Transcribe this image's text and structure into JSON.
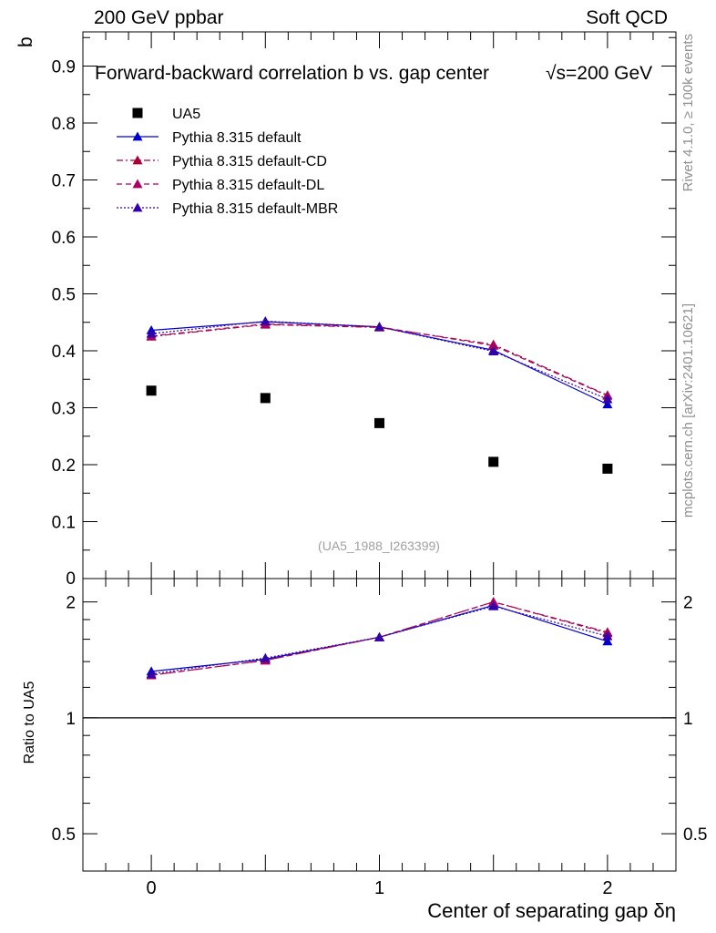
{
  "header": {
    "left": "200 GeV ppbar",
    "right": "Soft QCD"
  },
  "side_labels": {
    "rivet": "Rivet 4.1.0, ≥ 100k events",
    "mcplots": "mcplots.cern.ch [arXiv:2401.10621]"
  },
  "colors": {
    "data": "#000000",
    "default": "#0000cc",
    "cd": "#aa0033",
    "dl": "#aa0066",
    "mbr": "#3300aa"
  },
  "chart_data": [
    {
      "type": "scatter",
      "title": "Forward-backward correlation b  vs. gap center",
      "title_suffix": "√s=200 GeV",
      "watermark": "(UA5_1988_I263399)",
      "xlabel": "Center of separating gap δη",
      "ylabel": "b",
      "xlim": [
        -0.3,
        2.3
      ],
      "ylim": [
        0,
        0.96
      ],
      "yticks": [
        0.1,
        0.2,
        0.3,
        0.4,
        0.5,
        0.6,
        0.7,
        0.8,
        0.9
      ],
      "ytick_labels": [
        "0.1",
        "0.2",
        "0.3",
        "0.4",
        "0.5",
        "0.6",
        "0.7",
        "0.8",
        "0.9"
      ],
      "y_zero_label": "0",
      "x": [
        0,
        0.5,
        1,
        1.5,
        2
      ],
      "series": [
        {
          "name": "UA5",
          "marker": "square",
          "line": "none",
          "color": "#000000",
          "values": [
            0.33,
            0.317,
            0.273,
            0.205,
            0.193
          ]
        },
        {
          "name": "Pythia 8.315 default",
          "marker": "triangle",
          "line": "solid",
          "color": "#0000cc",
          "values": [
            0.436,
            0.451,
            0.442,
            0.401,
            0.306
          ]
        },
        {
          "name": "Pythia 8.315 default-CD",
          "marker": "triangle",
          "line": "dashdot",
          "color": "#aa0033",
          "values": [
            0.425,
            0.446,
            0.441,
            0.411,
            0.322
          ]
        },
        {
          "name": "Pythia 8.315 default-DL",
          "marker": "triangle",
          "line": "dashed",
          "color": "#aa0066",
          "values": [
            0.426,
            0.447,
            0.442,
            0.409,
            0.321
          ]
        },
        {
          "name": "Pythia 8.315 default-MBR",
          "marker": "triangle",
          "line": "dotted",
          "color": "#3300aa",
          "values": [
            0.43,
            0.452,
            0.442,
            0.399,
            0.315
          ]
        }
      ]
    },
    {
      "type": "line",
      "ylabel": "Ratio to UA5",
      "xlabel": "Center of separating gap δη",
      "xlim": [
        -0.3,
        2.3
      ],
      "ylim": [
        0.4,
        2.3
      ],
      "yscale": "log",
      "yticks": [
        0.5,
        1,
        2
      ],
      "ytick_labels": [
        "0.5",
        "1",
        "2"
      ],
      "xticks": [
        0,
        1,
        2
      ],
      "xtick_labels": [
        "0",
        "1",
        "2"
      ],
      "reference": 1,
      "x": [
        0,
        0.5,
        1,
        1.5,
        2
      ],
      "series": [
        {
          "name": "Pythia 8.315 default",
          "line": "solid",
          "color": "#0000cc",
          "values": [
            1.32,
            1.42,
            1.62,
            1.96,
            1.58
          ]
        },
        {
          "name": "Pythia 8.315 default-CD",
          "line": "dashdot",
          "color": "#aa0033",
          "values": [
            1.29,
            1.41,
            1.62,
            2.0,
            1.67
          ]
        },
        {
          "name": "Pythia 8.315 default-DL",
          "line": "dashed",
          "color": "#aa0066",
          "values": [
            1.29,
            1.41,
            1.62,
            2.0,
            1.66
          ]
        },
        {
          "name": "Pythia 8.315 default-MBR",
          "line": "dotted",
          "color": "#3300aa",
          "values": [
            1.3,
            1.43,
            1.62,
            1.95,
            1.63
          ]
        }
      ]
    }
  ]
}
